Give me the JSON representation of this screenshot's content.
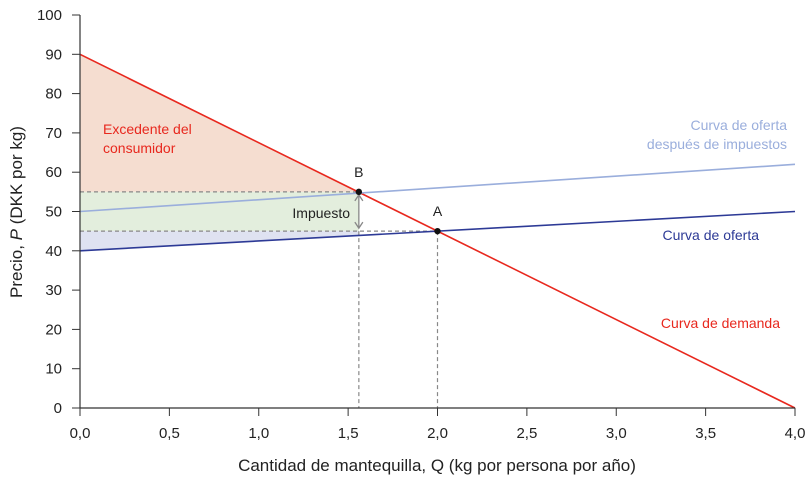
{
  "chart_data": {
    "type": "line",
    "xlabel": "Cantidad de mantequilla, Q (kg por persona por año)",
    "ylabel_parts": [
      "Precio, ",
      "P",
      " (DKK por kg)"
    ],
    "xlim": [
      0,
      4
    ],
    "ylim": [
      0,
      100
    ],
    "xticks": [
      "0,0",
      "0,5",
      "1,0",
      "1,5",
      "2,0",
      "2,5",
      "3,0",
      "3,5",
      "4,0"
    ],
    "xtick_values": [
      0,
      0.5,
      1,
      1.5,
      2,
      2.5,
      3,
      3.5,
      4
    ],
    "yticks": [
      "0",
      "10",
      "20",
      "30",
      "40",
      "50",
      "60",
      "70",
      "80",
      "90",
      "100"
    ],
    "ytick_values": [
      0,
      10,
      20,
      30,
      40,
      50,
      60,
      70,
      80,
      90,
      100
    ],
    "grid": false,
    "series": [
      {
        "name": "Curva de demanda",
        "color": "#e8281e",
        "x": [
          0,
          4
        ],
        "y": [
          90,
          0
        ]
      },
      {
        "name": "Curva de oferta",
        "color": "#2d3a96",
        "x": [
          0,
          4
        ],
        "y": [
          40,
          50
        ]
      },
      {
        "name": "Curva de oferta después de impuestos",
        "name_lines": [
          "Curva de oferta",
          "después de impuestos"
        ],
        "color": "#9aaedc",
        "x": [
          0,
          4
        ],
        "y": [
          50,
          62
        ]
      }
    ],
    "points": [
      {
        "label": "A",
        "x": 2.0,
        "y": 45
      },
      {
        "label": "B",
        "x": 1.56,
        "y": 55
      }
    ],
    "areas": [
      {
        "label_lines": [
          "Excedente del",
          "consumidor"
        ],
        "color": "#f5ddd0",
        "label_color": "#e8281e",
        "polygon": [
          [
            0,
            90
          ],
          [
            0,
            55
          ],
          [
            1.56,
            55
          ]
        ]
      },
      {
        "label": "",
        "color": "#e3eedd",
        "polygon": [
          [
            0,
            55
          ],
          [
            1.56,
            55
          ],
          [
            1.56,
            45
          ],
          [
            0,
            45
          ]
        ]
      },
      {
        "label": "",
        "color": "#dfe2f1",
        "polygon": [
          [
            0,
            45
          ],
          [
            1.56,
            45
          ],
          [
            1.56,
            43.9
          ],
          [
            0,
            40
          ]
        ]
      }
    ],
    "annotations": {
      "tax": "Impuesto"
    }
  }
}
